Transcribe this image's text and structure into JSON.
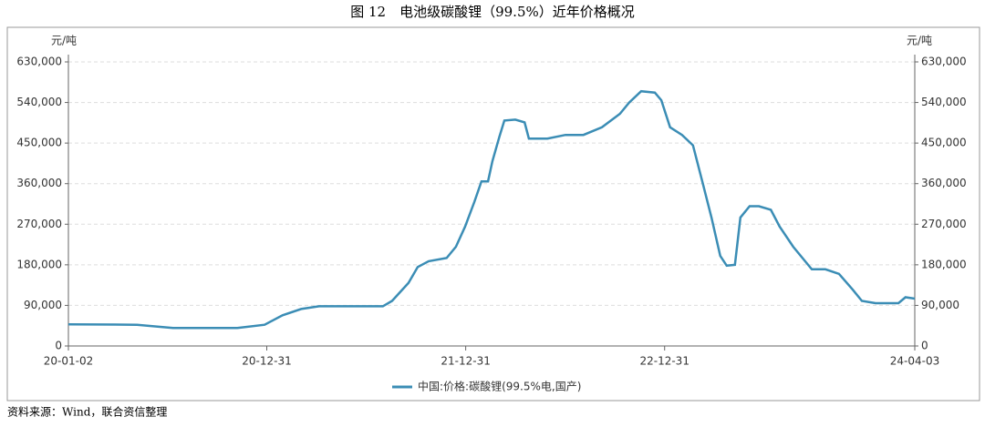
{
  "chart_data": {
    "type": "line",
    "title": "图 12　电池级碳酸锂（99.5%）近年价格概况",
    "source": "资料来源：Wind，联合资信整理",
    "ylabel": "元/吨",
    "y2label": "元/吨",
    "x": [
      "2020-01-02",
      "2020-05-07",
      "2020-07-12",
      "2020-11-07",
      "2020-12-27",
      "2021-01-29",
      "2021-03-04",
      "2021-04-06",
      "2021-08-01",
      "2021-08-18",
      "2021-09-17",
      "2021-10-04",
      "2021-10-24",
      "2021-11-26",
      "2021-12-13",
      "2021-12-30",
      "2022-01-16",
      "2022-01-29",
      "2022-02-10",
      "2022-02-18",
      "2022-03-03",
      "2022-03-12",
      "2022-04-01",
      "2022-04-18",
      "2022-04-26",
      "2022-05-30",
      "2022-07-02",
      "2022-08-04",
      "2022-09-07",
      "2022-10-10",
      "2022-10-27",
      "2022-11-18",
      "2022-12-13",
      "2022-12-25",
      "2023-01-10",
      "2023-02-01",
      "2023-02-21",
      "2023-03-10",
      "2023-03-27",
      "2023-04-12",
      "2023-04-24",
      "2023-05-09",
      "2023-05-19",
      "2023-06-05",
      "2023-06-22",
      "2023-07-14",
      "2023-07-30",
      "2023-08-24",
      "2023-09-27",
      "2023-10-22",
      "2023-11-16",
      "2023-12-11",
      "2023-12-28",
      "2024-01-22",
      "2024-03-04",
      "2024-03-17",
      "2024-04-03"
    ],
    "series": [
      {
        "name": "中国:价格:碳酸锂(99.5%电,国产)",
        "color": "#3b8db5",
        "values": [
          48000,
          47000,
          40000,
          40000,
          47000,
          68000,
          82000,
          88000,
          88000,
          100000,
          140000,
          175000,
          188000,
          195000,
          220000,
          265000,
          320000,
          365000,
          365000,
          410000,
          465000,
          500000,
          502000,
          496000,
          460000,
          460000,
          468000,
          468000,
          485000,
          515000,
          540000,
          565000,
          562000,
          545000,
          485000,
          468000,
          445000,
          365000,
          285000,
          200000,
          178000,
          180000,
          285000,
          310000,
          310000,
          302000,
          265000,
          220000,
          170000,
          170000,
          160000,
          125000,
          100000,
          95000,
          95000,
          108000,
          105000
        ]
      }
    ],
    "xlim": [
      "2020-01-02",
      "2024-04-03"
    ],
    "xticks": [
      {
        "value": "2020-01-02",
        "label": "20-01-02"
      },
      {
        "value": "2020-12-31",
        "label": "20-12-31"
      },
      {
        "value": "2021-12-31",
        "label": "21-12-31"
      },
      {
        "value": "2022-12-31",
        "label": "22-12-31"
      },
      {
        "value": "2024-04-03",
        "label": "24-04-03"
      }
    ],
    "ylim": [
      0,
      630000
    ],
    "yticks": [
      0,
      {
        "value": 90000,
        "label": "90,000"
      },
      {
        "value": 180000,
        "label": "180,000"
      },
      {
        "value": 270000,
        "label": "270,000"
      },
      {
        "value": 360000,
        "label": "360,000"
      },
      {
        "value": 450000,
        "label": "450,000"
      },
      {
        "value": 540000,
        "label": "540,000"
      },
      {
        "value": 630000,
        "label": "630,000"
      }
    ],
    "y2lim": [
      0,
      630000
    ],
    "y2ticks": [
      0,
      {
        "value": 90000,
        "label": "90,000"
      },
      {
        "value": 180000,
        "label": "180,000"
      },
      {
        "value": 270000,
        "label": "270,000"
      },
      {
        "value": 360000,
        "label": "360,000"
      },
      {
        "value": 450000,
        "label": "450,000"
      },
      {
        "value": 540000,
        "label": "540,000"
      },
      {
        "value": 630000,
        "label": "630,000"
      }
    ],
    "grid": true,
    "legend": "bottom"
  }
}
